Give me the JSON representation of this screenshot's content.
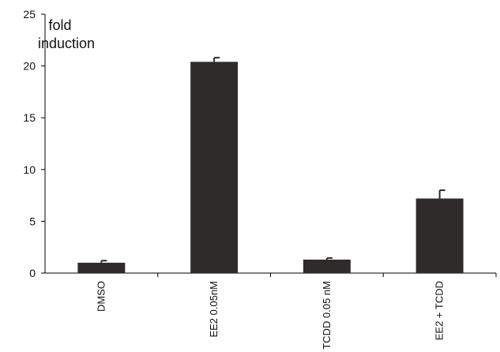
{
  "chart_data": {
    "type": "bar",
    "title": "",
    "ylabel": [
      "fold",
      "induction"
    ],
    "xlabel": "",
    "categories": [
      "DMSO",
      "EE2 0.05nM",
      "TCDD 0.05 nM",
      "EE2 + TCDD"
    ],
    "values": [
      1.0,
      20.4,
      1.3,
      7.2
    ],
    "errors": [
      0.2,
      0.4,
      0.15,
      0.8
    ],
    "ylim": [
      0,
      25
    ],
    "yticks": [
      0,
      5,
      10,
      15,
      20,
      25
    ],
    "grid": false,
    "legend": "none",
    "bar_color": "#2f2b2b"
  }
}
